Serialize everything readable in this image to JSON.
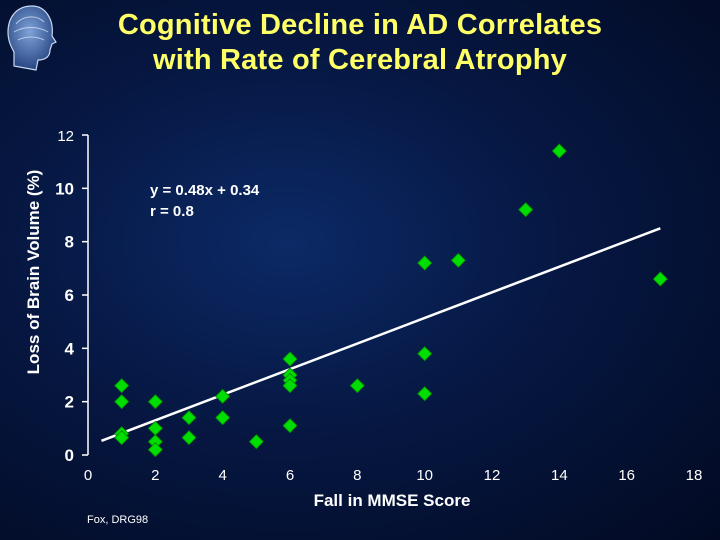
{
  "slide": {
    "title_line1": "Cognitive Decline in AD Correlates",
    "title_line2": "with Rate of Cerebral Atrophy",
    "citation": "Fox, DRG98",
    "logo_icon": "head-silhouette-icon"
  },
  "chart_data": {
    "type": "scatter",
    "title": "Cognitive Decline in AD Correlates with Rate of Cerebral Atrophy",
    "xlabel": "Fall in MMSE Score",
    "ylabel": "Loss of Brain Volume (%)",
    "xlim": [
      0,
      18
    ],
    "ylim": [
      0,
      12
    ],
    "x_ticks": [
      "0",
      "2",
      "4",
      "6",
      "8",
      "10",
      "12",
      "14",
      "16",
      "18"
    ],
    "y_ticks": [
      "0",
      "2",
      "4",
      "6",
      "8",
      "10",
      "12"
    ],
    "grid": false,
    "legend": "none",
    "marker_color": "#00dd00",
    "line_color": "#ffffff",
    "annotation": [
      "y = 0.48x + 0.34",
      "r = 0.8"
    ],
    "regression": {
      "slope": 0.48,
      "intercept": 0.34,
      "x_range": [
        0.4,
        17.0
      ]
    },
    "points": [
      [
        1,
        2.6
      ],
      [
        1,
        2.0
      ],
      [
        1,
        0.8
      ],
      [
        1,
        0.65
      ],
      [
        2,
        2.0
      ],
      [
        2,
        1.0
      ],
      [
        2,
        0.5
      ],
      [
        2,
        0.2
      ],
      [
        3,
        1.4
      ],
      [
        3,
        0.65
      ],
      [
        4,
        2.2
      ],
      [
        4,
        1.4
      ],
      [
        5,
        0.5
      ],
      [
        6,
        3.6
      ],
      [
        6,
        3.0
      ],
      [
        6,
        2.8
      ],
      [
        6,
        2.6
      ],
      [
        6,
        1.1
      ],
      [
        8,
        2.6
      ],
      [
        10,
        7.2
      ],
      [
        10,
        3.8
      ],
      [
        10,
        2.3
      ],
      [
        11,
        7.3
      ],
      [
        13,
        9.2
      ],
      [
        14,
        11.4
      ],
      [
        17,
        6.6
      ]
    ]
  }
}
